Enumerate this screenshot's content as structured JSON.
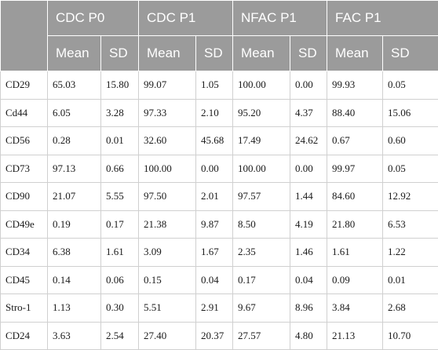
{
  "table": {
    "groups": [
      "CDC P0",
      "CDC P1",
      "NFAC P1",
      "FAC P1"
    ],
    "subheaders": [
      "Mean",
      "SD",
      "Mean",
      "SD",
      "Mean",
      "SD",
      "Mean",
      "SD"
    ],
    "rows": [
      {
        "label": "CD29",
        "values": [
          "65.03",
          "15.80",
          "99.07",
          "1.05",
          "100.00",
          "0.00",
          "99.93",
          "0.05"
        ]
      },
      {
        "label": "Cd44",
        "values": [
          "6.05",
          "3.28",
          "97.33",
          "2.10",
          "95.20",
          "4.37",
          "88.40",
          "15.06"
        ]
      },
      {
        "label": "CD56",
        "values": [
          "0.28",
          "0.01",
          "32.60",
          "45.68",
          "17.49",
          "24.62",
          "0.67",
          "0.60"
        ]
      },
      {
        "label": "CD73",
        "values": [
          "97.13",
          "0.66",
          "100.00",
          "0.00",
          "100.00",
          "0.00",
          "99.97",
          "0.05"
        ]
      },
      {
        "label": "CD90",
        "values": [
          "21.07",
          "5.55",
          "97.50",
          "2.01",
          "97.57",
          "1.44",
          "84.60",
          "12.92"
        ]
      },
      {
        "label": "CD49e",
        "values": [
          "0.19",
          "0.17",
          "21.38",
          "9.87",
          "8.50",
          "4.19",
          "21.80",
          "6.53"
        ]
      },
      {
        "label": "CD34",
        "values": [
          "6.38",
          "1.61",
          "3.09",
          "1.67",
          "2.35",
          "1.46",
          "1.61",
          "1.22"
        ]
      },
      {
        "label": "CD45",
        "values": [
          "0.14",
          "0.06",
          "0.15",
          "0.04",
          "0.17",
          "0.04",
          "0.09",
          "0.01"
        ]
      },
      {
        "label": "Stro-1",
        "values": [
          "1.13",
          "0.30",
          "5.51",
          "2.91",
          "9.67",
          "8.96",
          "3.84",
          "2.68"
        ]
      },
      {
        "label": "CD24",
        "values": [
          "3.63",
          "2.54",
          "27.40",
          "20.37",
          "27.57",
          "4.80",
          "21.13",
          "10.70"
        ]
      }
    ]
  },
  "colors": {
    "header_bg": "#9b9b9b",
    "header_text": "#ffffff",
    "grid_line": "#d0d0d0"
  }
}
